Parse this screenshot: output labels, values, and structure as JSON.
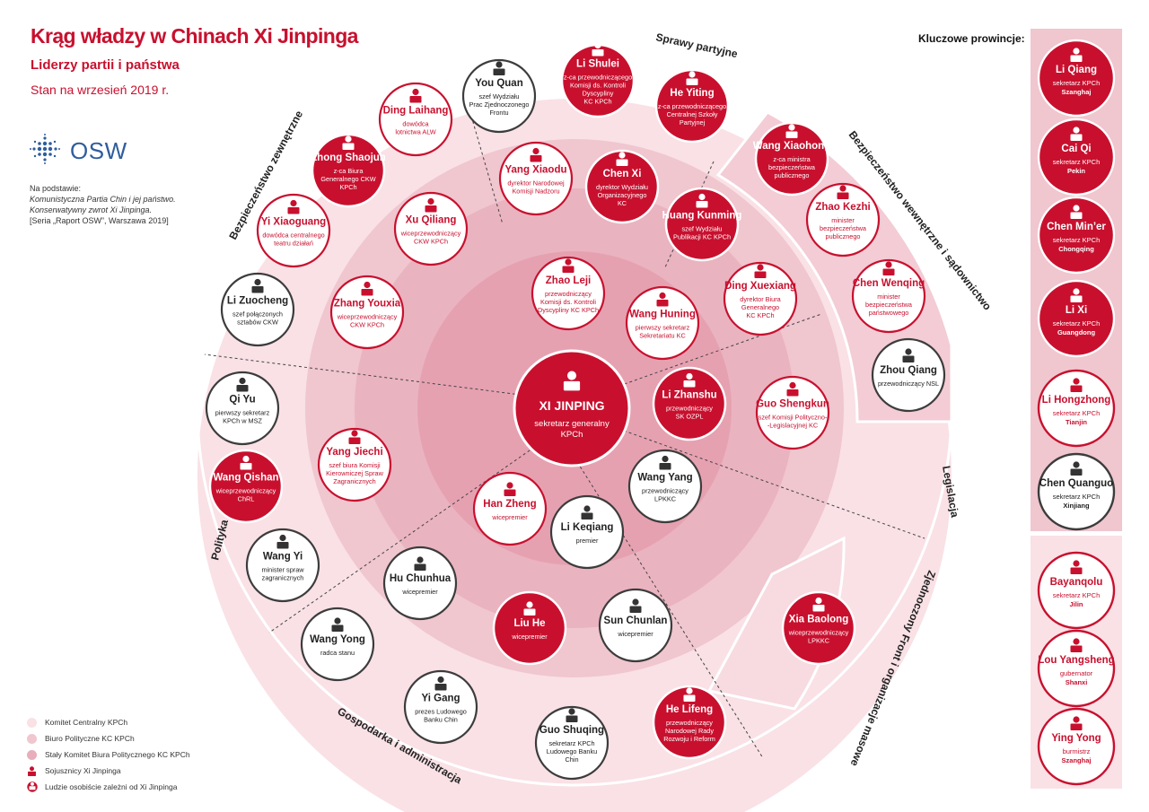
{
  "header": {
    "title": "Krąg władzy w Chinach Xi Jinpinga",
    "subtitle": "Liderzy partii i państwa",
    "date": "Stan na wrzesień 2019 r."
  },
  "logo": {
    "text": "OSW",
    "icon": "osw-globe-icon"
  },
  "source": {
    "intro": "Na podstawie:",
    "line1": "Komunistyczna Partia Chin i jej państwo.",
    "line2": "Konserwatywny zwrot Xi Jinpinga.",
    "line3": "[Seria „Raport OSW”, Warszawa 2019]"
  },
  "colors": {
    "red": "#c8102e",
    "ring_ck": "#f9e1e6",
    "ring_bp": "#f0c6cf",
    "ring_sk": "#e8aebb",
    "ring_center": "#e39aab",
    "gray_border": "#3c3c3c"
  },
  "legend": [
    {
      "label": "Komitet Centralny KPCh",
      "color": "#f9e1e6"
    },
    {
      "label": "Biuro Polityczne KC KPCh",
      "color": "#f0c6cf"
    },
    {
      "label": "Stały Komitet Biura Politycznego KC KPCh",
      "color": "#e8aebb"
    },
    {
      "label": "Sojusznicy Xi Jinpinga",
      "icon": "person-small-icon"
    },
    {
      "label": "Ludzie osobiście zależni od Xi Jinpinga",
      "icon": "person-circle-icon"
    }
  ],
  "sectors": [
    "Sprawy partyjne",
    "Bezpieczeństwo wewnętrzne i sądownictwo",
    "Legislacja",
    "Zjednoczony Front i organizacje masowe",
    "Gospodarka i administracja",
    "Polityka zagraniczna",
    "Bezpieczeństwo zewnętrzne"
  ],
  "center": {
    "name": "XI JINPING",
    "lines": [
      "sekretarz generalny",
      "KPCh"
    ]
  },
  "people": [
    {
      "name": "You Quan",
      "lines": [
        "szef Wydziału",
        "Prac Zjednoczonego",
        "Frontu"
      ],
      "style": "outline"
    },
    {
      "name": "Li Shulei",
      "lines": [
        "z-ca przewodniczącego",
        "Komisji ds. Kontroli",
        "Dyscypliny",
        "KC KPCh"
      ],
      "style": "filled"
    },
    {
      "name": "He Yiting",
      "lines": [
        "z-ca przewodniczącego",
        "Centralnej Szkoły",
        "Partyjnej"
      ],
      "style": "filled"
    },
    {
      "name": "Ding Laihang",
      "lines": [
        "dowódca",
        "lotnictwa ALW"
      ],
      "style": "outline_red"
    },
    {
      "name": "Zhong Shaojun",
      "lines": [
        "z-ca Biura",
        "Generalnego CKW",
        "KPCh"
      ],
      "style": "filled"
    },
    {
      "name": "Wang Xiaohong",
      "lines": [
        "z-ca ministra",
        "bezpieczeństwa",
        "publicznego"
      ],
      "style": "filled"
    },
    {
      "name": "Yang Xiaodu",
      "lines": [
        "dyrektor Narodowej",
        "Komisji Nadzoru"
      ],
      "style": "outline_red"
    },
    {
      "name": "Chen Xi",
      "lines": [
        "dyrektor Wydziału",
        "Organizacyjnego",
        "KC"
      ],
      "style": "filled"
    },
    {
      "name": "Huang Kunming",
      "lines": [
        "szef Wydziału",
        "Publikacji KC KPCh"
      ],
      "style": "filled"
    },
    {
      "name": "Zhao Kezhi",
      "lines": [
        "minister",
        "bezpieczeństwa",
        "publicznego"
      ],
      "style": "outline_red"
    },
    {
      "name": "Yi Xiaoguang",
      "lines": [
        "dowódca centralnego",
        "teatru działań"
      ],
      "style": "outline_red"
    },
    {
      "name": "Xu Qiliang",
      "lines": [
        "wiceprzewodniczący",
        "CKW KPCh"
      ],
      "style": "outline_red"
    },
    {
      "name": "Zhao Leji",
      "lines": [
        "przewodniczący",
        "Komisji ds. Kontroli",
        "Dyscypliny KC KPCh"
      ],
      "style": "outline_red"
    },
    {
      "name": "Ding Xuexiang",
      "lines": [
        "dyrektor Biura",
        "Generalnego",
        "KC KPCh"
      ],
      "style": "outline_red"
    },
    {
      "name": "Chen Wenqing",
      "lines": [
        "minister",
        "bezpieczeństwa",
        "państwowego"
      ],
      "style": "outline_red"
    },
    {
      "name": "Li Zuocheng",
      "lines": [
        "szef połączonych",
        "sztabów CKW"
      ],
      "style": "outline"
    },
    {
      "name": "Zhang Youxia",
      "lines": [
        "wiceprzewodniczący",
        "CKW KPCh"
      ],
      "style": "outline_red"
    },
    {
      "name": "Wang Huning",
      "lines": [
        "pierwszy sekretarz",
        "Sekretariatu KC"
      ],
      "style": "outline_red"
    },
    {
      "name": "Zhou Qiang",
      "lines": [
        "przewodniczący NSL"
      ],
      "style": "outline"
    },
    {
      "name": "Qi Yu",
      "lines": [
        "pierwszy sekretarz",
        "KPCh w MSZ"
      ],
      "style": "outline"
    },
    {
      "name": "Li Zhanshu",
      "lines": [
        "przewodniczący",
        "SK OZPL"
      ],
      "style": "filled"
    },
    {
      "name": "Guo Shengkun",
      "lines": [
        "szef Komisji Polityczno-",
        "-Legislacyjnej KC"
      ],
      "style": "outline_red"
    },
    {
      "name": "Yang Jiechi",
      "lines": [
        "szef biura Komisji",
        "Kierowniczej Spraw",
        "Zagranicznych"
      ],
      "style": "outline_red"
    },
    {
      "name": "Wang Qishan",
      "lines": [
        "wiceprzewodniczący",
        "ChRL"
      ],
      "style": "filled"
    },
    {
      "name": "Wang Yang",
      "lines": [
        "przewodniczący",
        "LPKKC"
      ],
      "style": "outline"
    },
    {
      "name": "Han Zheng",
      "lines": [
        "wicepremier"
      ],
      "style": "outline_red"
    },
    {
      "name": "Li Keqiang",
      "lines": [
        "premier"
      ],
      "style": "outline"
    },
    {
      "name": "Wang Yi",
      "lines": [
        "minister spraw",
        "zagranicznych"
      ],
      "style": "outline"
    },
    {
      "name": "Hu Chunhua",
      "lines": [
        "wicepremier"
      ],
      "style": "outline"
    },
    {
      "name": "Xia Baolong",
      "lines": [
        "wiceprzewodniczący",
        "LPKKC"
      ],
      "style": "filled"
    },
    {
      "name": "Liu He",
      "lines": [
        "wicepremier"
      ],
      "style": "filled"
    },
    {
      "name": "Sun Chunlan",
      "lines": [
        "wicepremier"
      ],
      "style": "outline"
    },
    {
      "name": "Wang Yong",
      "lines": [
        "radca stanu"
      ],
      "style": "outline"
    },
    {
      "name": "Yi Gang",
      "lines": [
        "prezes Ludowego",
        "Banku Chin"
      ],
      "style": "outline"
    },
    {
      "name": "Guo Shuqing",
      "lines": [
        "sekretarz KPCh",
        "Ludowego Banku",
        "Chin"
      ],
      "style": "outline"
    },
    {
      "name": "He Lifeng",
      "lines": [
        "przewodniczący",
        "Narodowej Rady",
        "Rozwoju i Reform"
      ],
      "style": "filled"
    }
  ],
  "provinces": {
    "heading": "Kluczowe prowincje:",
    "items": [
      {
        "name": "Li Qiang",
        "role": "sekretarz KPCh",
        "place": "Szanghaj",
        "style": "filled"
      },
      {
        "name": "Cai Qi",
        "role": "sekretarz KPCh",
        "place": "Pekin",
        "style": "filled"
      },
      {
        "name": "Chen Min’er",
        "role": "sekretarz KPCh",
        "place": "Chongqing",
        "style": "filled"
      },
      {
        "name": "Li Xi",
        "role": "sekretarz KPCh",
        "place": "Guangdong",
        "style": "filled"
      },
      {
        "name": "Li Hongzhong",
        "role": "sekretarz KPCh",
        "place": "Tianjin",
        "style": "outline_red"
      },
      {
        "name": "Chen Quanguo",
        "role": "sekretarz KPCh",
        "place": "Xinjiang",
        "style": "outline"
      },
      {
        "name": "Bayanqolu",
        "role": "sekretarz KPCh",
        "place": "Jilin",
        "style": "outline_red"
      },
      {
        "name": "Lou Yangsheng",
        "role": "gubernator",
        "place": "Shanxi",
        "style": "outline_red"
      },
      {
        "name": "Ying Yong",
        "role": "burmistrz",
        "place": "Szanghaj",
        "style": "outline_red"
      }
    ]
  }
}
